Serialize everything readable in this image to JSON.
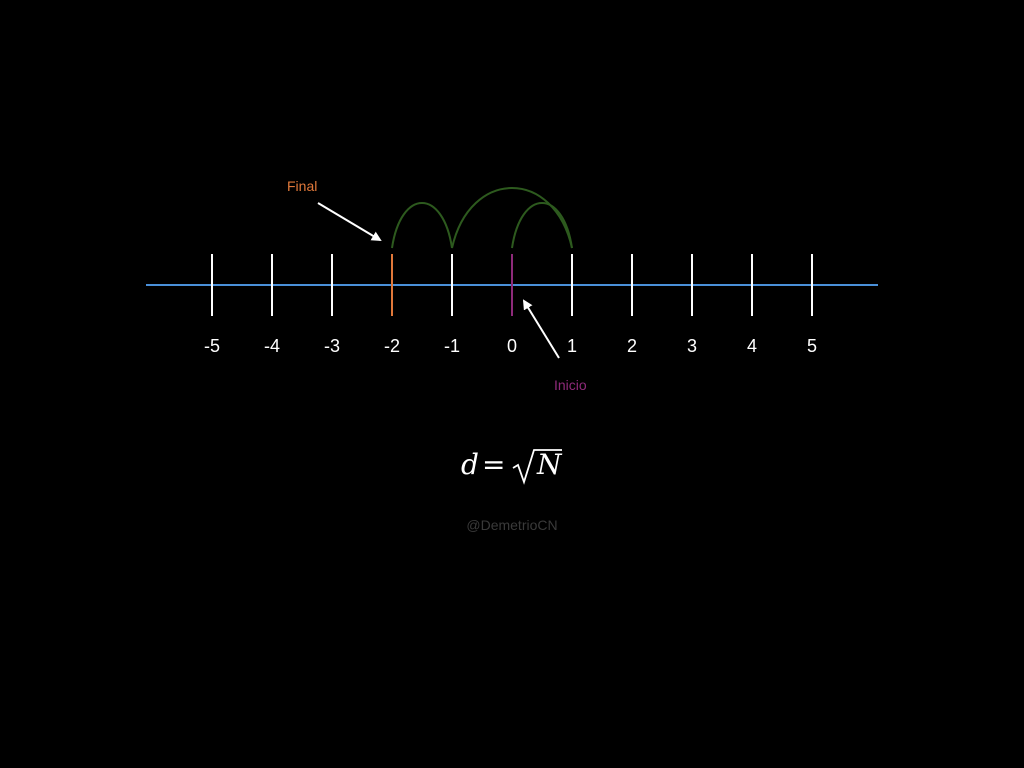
{
  "number_line": {
    "ticks": [
      -5,
      -4,
      -3,
      -2,
      -1,
      0,
      1,
      2,
      3,
      4,
      5
    ],
    "tick_labels": [
      "-5",
      "-4",
      "-3",
      "-2",
      "-1",
      "0",
      "1",
      "2",
      "3",
      "4",
      "5"
    ],
    "final_position": -2,
    "start_position": 0
  },
  "walk": {
    "path": [
      0,
      1,
      -1,
      -2
    ]
  },
  "callouts": {
    "final_label": "Final",
    "start_label": "Inicio"
  },
  "formula": {
    "lhs": "d",
    "equals": "=",
    "radicand": "N"
  },
  "watermark": "@DemetrioCN",
  "colors": {
    "background": "#000000",
    "axis": "#4a90d9",
    "tick": "#ffffff",
    "final": "#e0783a",
    "start": "#8e2a7a",
    "walk": "#2d5a1e",
    "arrow": "#ffffff",
    "watermark": "#3a3a3a"
  }
}
